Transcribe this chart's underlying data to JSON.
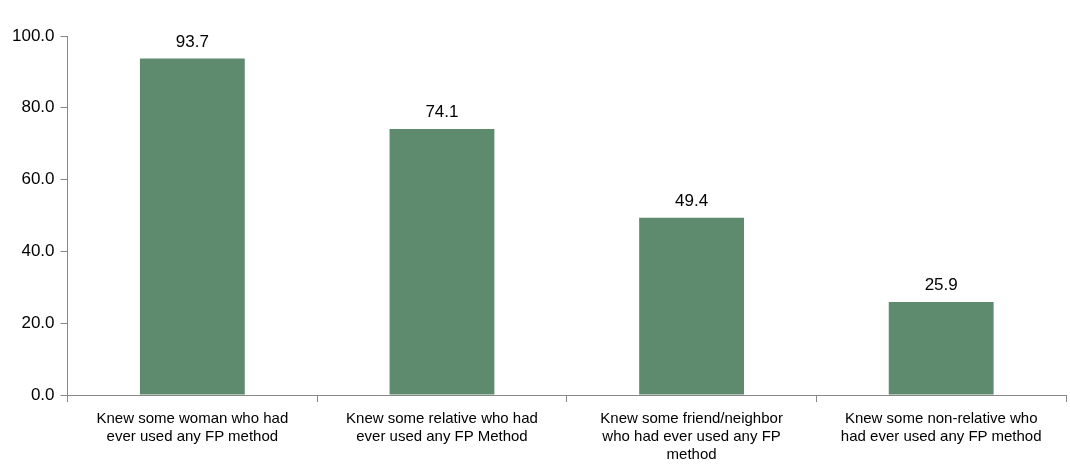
{
  "chart_data": {
    "type": "bar",
    "categories": [
      "Knew some woman who had ever used any FP method",
      "Knew some relative who had ever used any FP Method",
      "Knew some friend/neighbor who had ever used any FP method",
      "Knew some non-relative who had ever used any FP method"
    ],
    "values": [
      93.7,
      74.1,
      49.4,
      25.9
    ],
    "color": "#5e8a6e",
    "ylim": [
      0,
      100
    ],
    "yticks": [
      {
        "value": 0,
        "label": "0.0"
      },
      {
        "value": 20,
        "label": "20.0"
      },
      {
        "value": 40,
        "label": "40.0"
      },
      {
        "value": 60,
        "label": "60.0"
      },
      {
        "value": 80,
        "label": "80.0"
      },
      {
        "value": 100,
        "label": "100.0"
      }
    ],
    "data_labels": true,
    "grid": false,
    "legend": false
  }
}
